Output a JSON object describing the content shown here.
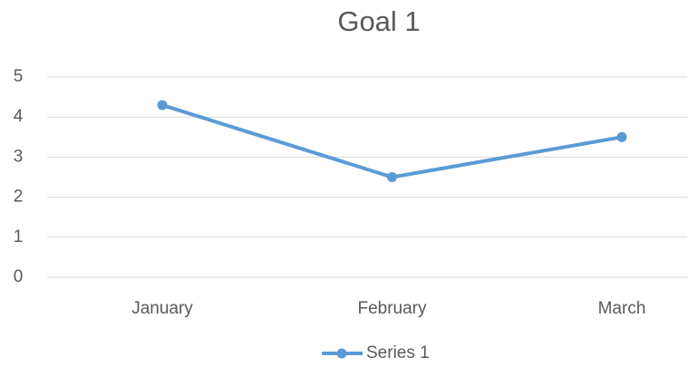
{
  "chart_data": {
    "type": "line",
    "title": "Goal 1",
    "categories": [
      "January",
      "February",
      "March"
    ],
    "series": [
      {
        "name": "Series 1",
        "color": "#5b9bd5",
        "values": [
          4.3,
          2.5,
          3.5
        ]
      }
    ],
    "ylim": [
      0,
      5
    ],
    "yticks": [
      0,
      1,
      2,
      3,
      4,
      5
    ],
    "grid": true,
    "legend": "bottom"
  }
}
